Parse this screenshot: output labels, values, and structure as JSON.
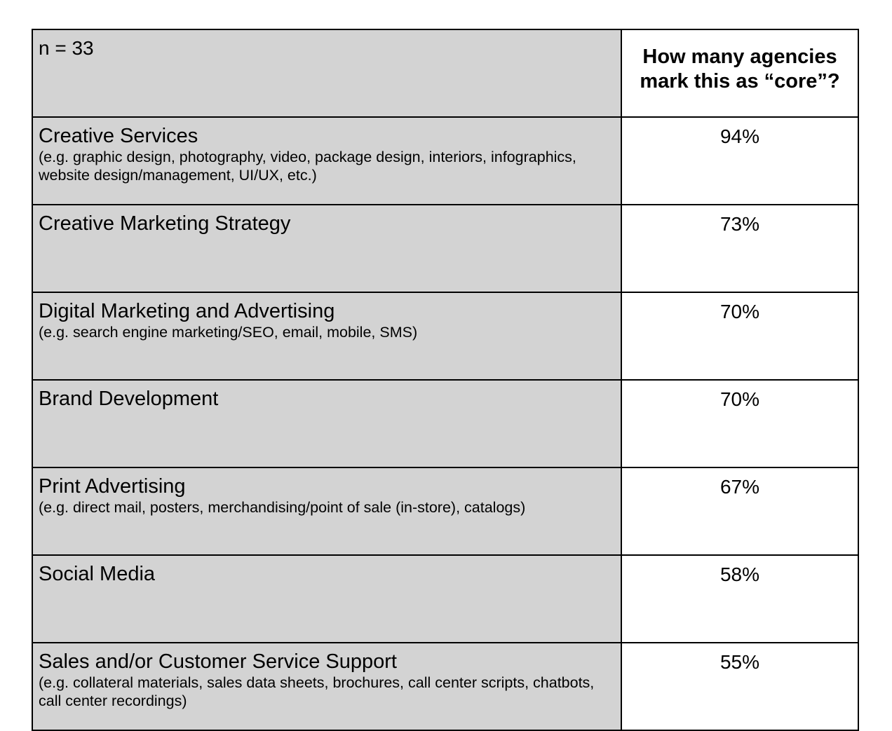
{
  "header": {
    "sample_size": "n = 33",
    "column_title": "How many agencies mark this as “core”?"
  },
  "chart_data": {
    "type": "table",
    "title": "",
    "columns": [
      "n = 33",
      "How many agencies mark this as “core”?"
    ],
    "rows": [
      {
        "category": "Creative Services",
        "examples": "(e.g. graphic design, photography, video, package design, interiors, infographics, website design/management, UI/UX, etc.)",
        "value": 94,
        "value_label": "94%"
      },
      {
        "category": "Creative Marketing Strategy",
        "examples": "",
        "value": 73,
        "value_label": "73%"
      },
      {
        "category": "Digital Marketing and Advertising",
        "examples": "(e.g. search engine marketing/SEO, email, mobile, SMS)",
        "value": 70,
        "value_label": "70%"
      },
      {
        "category": "Brand Development",
        "examples": "",
        "value": 70,
        "value_label": "70%"
      },
      {
        "category": "Print Advertising",
        "examples": "(e.g. direct mail, posters, merchandising/point of sale (in-store), catalogs)",
        "value": 67,
        "value_label": "67%"
      },
      {
        "category": "Social Media",
        "examples": "",
        "value": 58,
        "value_label": "58%"
      },
      {
        "category": "Sales and/or Customer Service Support",
        "examples": "(e.g. collateral materials, sales data sheets, brochures, call center scripts, chatbots, call center recordings)",
        "value": 55,
        "value_label": "55%"
      }
    ]
  },
  "colors": {
    "label_background": "#d3d3d3",
    "value_background": "#ffffff",
    "border": "#000000"
  }
}
